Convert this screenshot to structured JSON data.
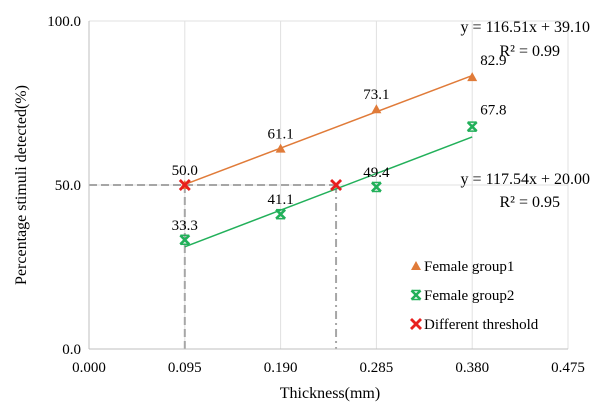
{
  "chart_data": {
    "type": "scatter",
    "xlabel": "Thickness(mm)",
    "ylabel": "Percentage stimuli detected(%)",
    "xlim": [
      0,
      0.475
    ],
    "ylim": [
      0,
      100
    ],
    "xticks": [
      "0.000",
      "0.095",
      "0.190",
      "0.285",
      "0.380",
      "0.475"
    ],
    "yticks": [
      "0.0",
      "50.0",
      "100.0"
    ],
    "grid": true,
    "legend_position": "bottom-right",
    "series": [
      {
        "name": "Female group1",
        "marker": "triangle",
        "color": "#E07B39",
        "x": [
          0.095,
          0.19,
          0.285,
          0.38
        ],
        "y": [
          50.0,
          61.1,
          73.1,
          82.9
        ],
        "labels": [
          "50.0",
          "61.1",
          "73.1",
          "82.9"
        ],
        "trendline": {
          "slope": 116.51,
          "intercept": 39.1,
          "equation": "y = 116.51x + 39.10",
          "r2": "R² = 0.99"
        }
      },
      {
        "name": "Female group2",
        "marker": "x-bar",
        "color": "#22B05A",
        "x": [
          0.095,
          0.19,
          0.285,
          0.38
        ],
        "y": [
          33.3,
          41.1,
          49.4,
          67.8
        ],
        "labels": [
          "33.3",
          "41.1",
          "49.4",
          "67.8"
        ],
        "trendline": {
          "slope": 117.54,
          "intercept": 20.0,
          "equation": "y = 117.54x + 20.00",
          "r2": "R² = 0.95"
        }
      },
      {
        "name": "Different threshold",
        "marker": "x",
        "color": "#E8201E",
        "x": [
          0.095,
          0.245
        ],
        "y": [
          50,
          50
        ]
      }
    ]
  }
}
